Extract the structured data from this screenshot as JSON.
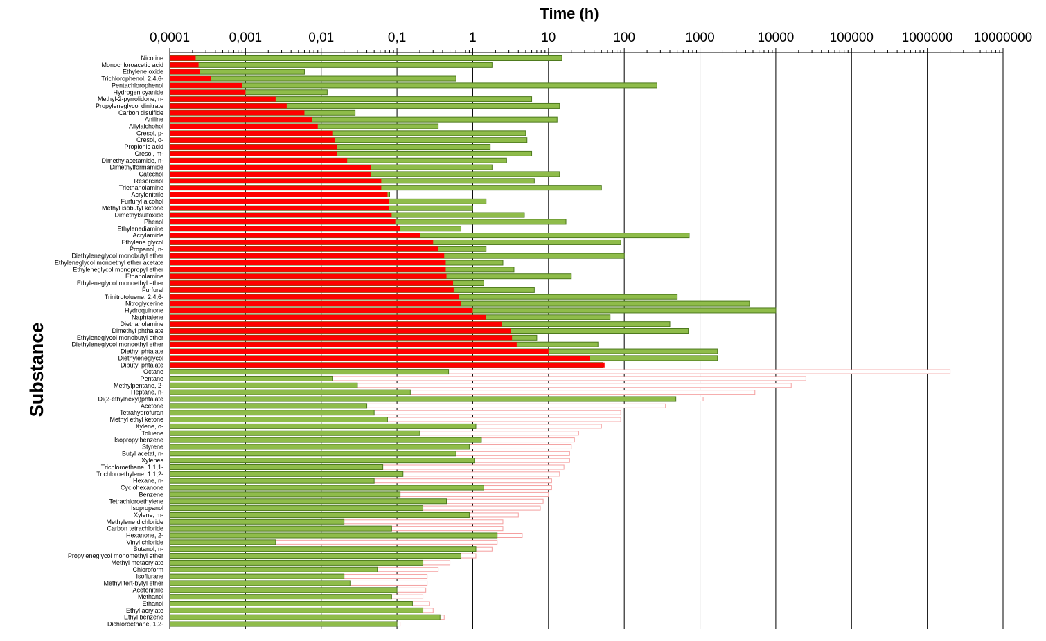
{
  "chart_data": {
    "type": "bar",
    "title": "",
    "xlabel": "Time (h)",
    "ylabel": "Substance",
    "x_scale": "log",
    "xlim": [
      0.0001,
      10000000
    ],
    "x_tick_labels": [
      "0,0001",
      "0,001",
      "0,01",
      "0,1",
      "1",
      "10",
      "100",
      "1000",
      "10000",
      "100000",
      "1000000",
      "10000000"
    ],
    "grid": "vertical major gridlines",
    "legend": "none",
    "colors": {
      "red_bar": "#ff0000",
      "green_bar": "#8fbc4a",
      "green_edge": "#4e7a1e",
      "pink_bar_edge": "#f4a0a0"
    },
    "series": [
      {
        "style": "solid red bar, left segment (rows 1-46); outlined pink bar, right segment (rows 47-84)"
      },
      {
        "style": "green bar"
      }
    ],
    "categories": [
      "Nicotine",
      "Monochloroacetic acid",
      "Ethylene oxide",
      "Trichlorophenol, 2,4,6-",
      "Pentachlorophenol",
      "Hydrogen cyanide",
      "Methyl-2-pyrrolidone, n-",
      "Propyleneglycol dinitrate",
      "Carbon disulfide",
      "Aniline",
      "Allylalchohol",
      "Cresol, p-",
      "Cresol, o-",
      "Propionic acid",
      "Cresol, m-",
      "Dimethylacetamide, n-",
      "Dimethylformamide",
      "Catechol",
      "Resorcinol",
      "Triethanolamine",
      "Acrylonitrile",
      "Furfuryl alcohol",
      "Methyl isobutyl ketone",
      "Dimethylsulfoxide",
      "Phenol",
      "Ethylenediamine",
      "Acrylamide",
      "Ethylene glycol",
      "Propanol, n-",
      "Diethyleneglycol monobutyl ether",
      "Ethyleneglycol monoethyl ether acetate",
      "Ethyleneglycol monopropyl ether",
      "Ethanolamine",
      "Ethyleneglycol monoethyl ether",
      "Furfural",
      "Trinitrotoluene, 2,4,6-",
      "Nitroglycerine",
      "Hydroquinone",
      "Naphtalene",
      "Diethanolamine",
      "Dimethyl phthalate",
      "Ethyleneglycol monobutyl ether",
      "Diethyleneglycol monoethyl ether",
      "Diethyl phtalate",
      "Diethyleneglycol",
      "Dibutyl phtalate",
      "Octane",
      "Pentane",
      "Methylpentane, 2-",
      "Heptane, n-",
      "Di(2-ethylhexyl)phtalate",
      "Acetone",
      "Tetrahydrofuran",
      "Methyl ethyl ketone",
      "Xylene, o-",
      "Toluene",
      "Isopropylbenzene",
      "Styrene",
      "Butyl acetat, n-",
      "Xylenes",
      "Trichloroethane, 1,1,1-",
      "Trichloroethylene, 1,1,2-",
      "Hexane, n-",
      "Cyclohexanone",
      "Benzene",
      "Tetrachloroethylene",
      "Isopropanol",
      "Xylene, m-",
      "Methylene dichloride",
      "Carbon tetrachloride",
      "Hexanone, 2-",
      "Vinyl chloride",
      "Butanol, n-",
      "Propyleneglycol monomethyl ether",
      "Methyl metacrylate",
      "Chloroform",
      "Isoflurane",
      "Methyl tert-bytyl ether",
      "Acetonitrile",
      "Methanol",
      "Ethanol",
      "Ethyl acrylate",
      "Ethyl benzene",
      "Dichloroethane, 1,2-"
    ],
    "bars": [
      [
        0.00022,
        15
      ],
      [
        0.00024,
        1.8
      ],
      [
        0.00025,
        0.006
      ],
      [
        0.00035,
        0.6
      ],
      [
        0.0009,
        270
      ],
      [
        0.001,
        0.012
      ],
      [
        0.0025,
        6
      ],
      [
        0.0035,
        14
      ],
      [
        0.006,
        0.028
      ],
      [
        0.0075,
        13
      ],
      [
        0.009,
        0.35
      ],
      [
        0.014,
        5
      ],
      [
        0.015,
        5.2
      ],
      [
        0.016,
        1.7
      ],
      [
        0.016,
        6
      ],
      [
        0.022,
        2.8
      ],
      [
        0.045,
        1.8
      ],
      [
        0.045,
        14
      ],
      [
        0.062,
        6.5
      ],
      [
        0.062,
        50
      ],
      [
        0.075,
        0.08
      ],
      [
        0.078,
        1.5
      ],
      [
        0.078,
        1
      ],
      [
        0.085,
        4.8
      ],
      [
        0.095,
        17
      ],
      [
        0.11,
        0.7
      ],
      [
        0.2,
        720
      ],
      [
        0.3,
        90
      ],
      [
        0.35,
        1.5
      ],
      [
        0.42,
        100
      ],
      [
        0.44,
        2.5
      ],
      [
        0.44,
        3.5
      ],
      [
        0.45,
        20
      ],
      [
        0.55,
        1.4
      ],
      [
        0.56,
        6.5
      ],
      [
        0.65,
        500
      ],
      [
        0.7,
        4500
      ],
      [
        1,
        10000
      ],
      [
        1.5,
        65
      ],
      [
        2.4,
        400
      ],
      [
        3.2,
        700
      ],
      [
        3.3,
        7
      ],
      [
        3.8,
        45
      ],
      [
        10,
        1700
      ],
      [
        35,
        1700
      ],
      [
        55,
        52
      ],
      [
        2000000,
        0.48
      ],
      [
        25000,
        0.014
      ],
      [
        16000,
        0.03
      ],
      [
        5300,
        0.15
      ],
      [
        1100,
        480
      ],
      [
        350,
        0.04
      ],
      [
        90,
        0.05
      ],
      [
        90,
        0.075
      ],
      [
        50,
        1.1
      ],
      [
        25,
        0.2
      ],
      [
        22,
        1.3
      ],
      [
        20,
        0.9
      ],
      [
        19,
        0.6
      ],
      [
        19,
        1.05
      ],
      [
        16,
        0.065
      ],
      [
        14,
        0.12
      ],
      [
        11,
        0.05
      ],
      [
        11,
        1.4
      ],
      [
        10,
        0.11
      ],
      [
        8.5,
        0.45
      ],
      [
        7.8,
        0.22
      ],
      [
        4,
        0.9
      ],
      [
        2.5,
        0.02
      ],
      [
        2.5,
        0.085
      ],
      [
        4.5,
        2.1
      ],
      [
        2.1,
        0.0025
      ],
      [
        1.8,
        1.1
      ],
      [
        1.1,
        0.7
      ],
      [
        0.5,
        0.22
      ],
      [
        0.35,
        0.055
      ],
      [
        0.25,
        0.02
      ],
      [
        0.25,
        0.024
      ],
      [
        0.24,
        0.1
      ],
      [
        0.22,
        0.085
      ],
      [
        0.27,
        0.16
      ],
      [
        0.3,
        0.22
      ],
      [
        0.42,
        0.37
      ],
      [
        0.11,
        0.1
      ]
    ]
  }
}
